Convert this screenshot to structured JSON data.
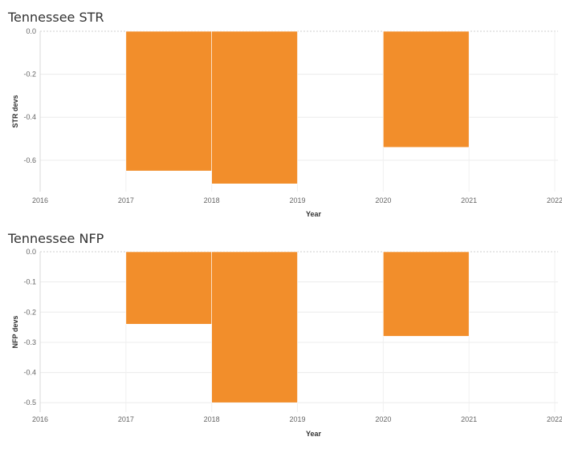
{
  "chart_data": [
    {
      "type": "bar",
      "title": "Tennessee STR",
      "xlabel": "Year",
      "ylabel": "STR devs",
      "x_ticks": [
        "2016",
        "2017",
        "2018",
        "2019",
        "2020",
        "2021",
        "2022"
      ],
      "xlim": [
        2016,
        2022
      ],
      "ylim": [
        -0.72,
        0.0
      ],
      "y_ticks": [
        "0.0",
        "-0.2",
        "-0.4",
        "-0.6"
      ],
      "y_tick_values": [
        0.0,
        -0.2,
        -0.4,
        -0.6
      ],
      "bars": [
        {
          "start": 2017,
          "end": 2018,
          "value": -0.65
        },
        {
          "start": 2018,
          "end": 2019,
          "value": -0.71
        },
        {
          "start": 2020,
          "end": 2021,
          "value": -0.54
        }
      ],
      "bar_color": "#F28E2B",
      "grid": true
    },
    {
      "type": "bar",
      "title": "Tennessee NFP",
      "xlabel": "Year",
      "ylabel": "NFP devs",
      "x_ticks": [
        "2016",
        "2017",
        "2018",
        "2019",
        "2020",
        "2021",
        "2022"
      ],
      "xlim": [
        2016,
        2022
      ],
      "ylim": [
        -0.51,
        0.0
      ],
      "y_ticks": [
        "0.0",
        "-0.1",
        "-0.2",
        "-0.3",
        "-0.4",
        "-0.5"
      ],
      "y_tick_values": [
        0.0,
        -0.1,
        -0.2,
        -0.3,
        -0.4,
        -0.5
      ],
      "bars": [
        {
          "start": 2017,
          "end": 2018,
          "value": -0.24
        },
        {
          "start": 2018,
          "end": 2019,
          "value": -0.5
        },
        {
          "start": 2020,
          "end": 2021,
          "value": -0.28
        }
      ],
      "bar_color": "#F28E2B",
      "grid": true
    }
  ]
}
